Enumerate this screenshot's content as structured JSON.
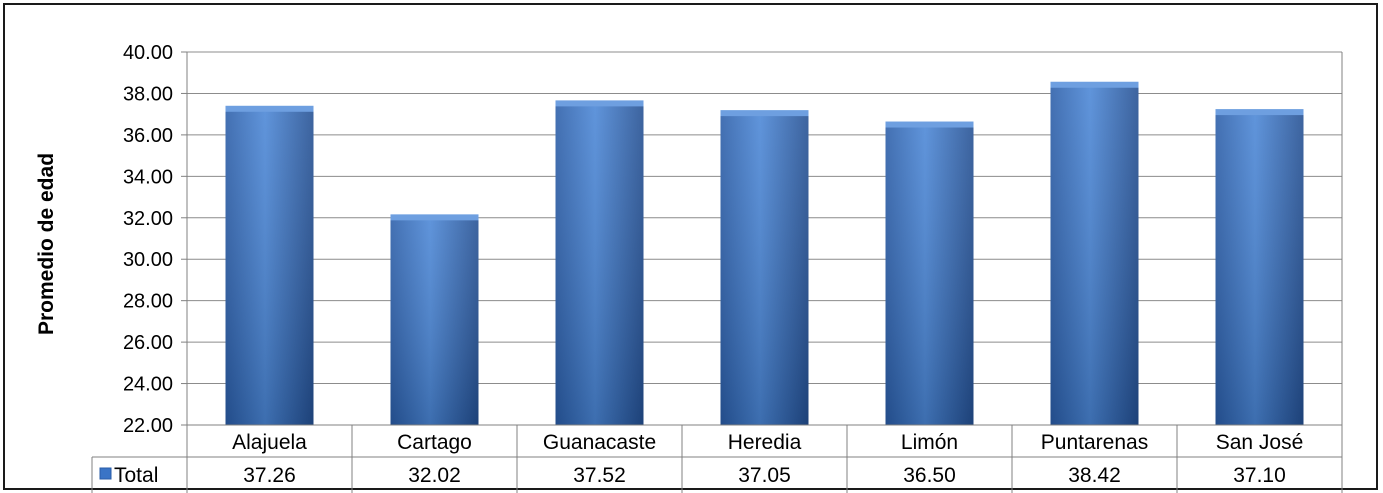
{
  "chart_data": {
    "type": "bar",
    "title": "",
    "xlabel": "",
    "ylabel": "Promedio de edad",
    "ylim": [
      22,
      40
    ],
    "yticks": [
      "22.00",
      "24.00",
      "26.00",
      "28.00",
      "30.00",
      "32.00",
      "34.00",
      "36.00",
      "38.00",
      "40.00"
    ],
    "ytick_values": [
      22,
      24,
      26,
      28,
      30,
      32,
      34,
      36,
      38,
      40
    ],
    "grid": true,
    "legend": "data-table-row",
    "categories": [
      "Alajuela",
      "Cartago",
      "Guanacaste",
      "Heredia",
      "Limón",
      "Puntarenas",
      "San José"
    ],
    "series": [
      {
        "name": "Total",
        "values": [
          37.26,
          32.02,
          37.52,
          37.05,
          36.5,
          38.42,
          37.1
        ],
        "labels": [
          "37.26",
          "32.02",
          "37.52",
          "37.05",
          "36.50",
          "38.42",
          "37.10"
        ],
        "color": "#3a74c6"
      }
    ]
  }
}
